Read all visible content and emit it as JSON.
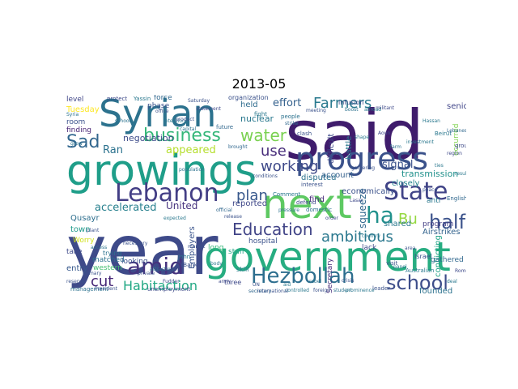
{
  "title": "2013-05",
  "words": [
    {
      "text": "said",
      "color": "#3f1c6c"
    },
    {
      "text": "year",
      "color": "#3e4a89"
    },
    {
      "text": "government",
      "color": "#27ad81"
    },
    {
      "text": "growings",
      "color": "#1f9e89"
    },
    {
      "text": "Syrian",
      "color": "#2c728e"
    },
    {
      "text": "next",
      "color": "#5ec962"
    },
    {
      "text": "progress",
      "color": "#3b528b"
    },
    {
      "text": "Lebanon",
      "color": "#433e85"
    },
    {
      "text": "State",
      "color": "#404387"
    },
    {
      "text": "amid",
      "color": "#46337e"
    },
    {
      "text": "Hezbollah",
      "color": "#2d6e8e"
    },
    {
      "text": "school",
      "color": "#3d4d8a"
    },
    {
      "text": "Education",
      "color": "#414487"
    },
    {
      "text": "business",
      "color": "#35b779"
    },
    {
      "text": "water",
      "color": "#7ad151"
    },
    {
      "text": "Habitaction",
      "color": "#22a884"
    },
    {
      "text": "ha",
      "color": "#21918c"
    },
    {
      "text": "Bu",
      "color": "#95d840"
    },
    {
      "text": "half",
      "color": "#3b528b"
    },
    {
      "text": "working",
      "color": "#3e4989"
    },
    {
      "text": "ambitious",
      "color": "#2a788e"
    },
    {
      "text": "Sad",
      "color": "#31668e"
    },
    {
      "text": "cut",
      "color": "#482878"
    },
    {
      "text": "plan",
      "color": "#38588c"
    },
    {
      "text": "Farmers",
      "color": "#29798e"
    },
    {
      "text": "use",
      "color": "#472c7a"
    },
    {
      "text": "effort",
      "color": "#34618d"
    },
    {
      "text": "United",
      "color": "#46327e"
    },
    {
      "text": "accelerated",
      "color": "#27808e"
    },
    {
      "text": "appeared",
      "color": "#b5de2b"
    },
    {
      "text": "Ran",
      "color": "#2c728e"
    },
    {
      "text": "negotiation",
      "color": "#3e4c8a"
    },
    {
      "text": "nuclear",
      "color": "#2a788e"
    },
    {
      "text": "signal",
      "color": "#3b528b"
    },
    {
      "text": "squeeze",
      "color": "#31688e"
    },
    {
      "text": "transmission",
      "color": "#21918c"
    },
    {
      "text": "Airstrikes",
      "color": "#33638d"
    },
    {
      "text": "conflicting",
      "color": "#20a386"
    },
    {
      "text": "Employers",
      "color": "#3a548c"
    },
    {
      "text": "Tuesday",
      "color": "#fde725"
    },
    {
      "text": "level",
      "color": "#404688"
    },
    {
      "text": "room",
      "color": "#3b528b"
    },
    {
      "text": "finding",
      "color": "#482475"
    },
    {
      "text": "Qusayr",
      "color": "#2e6f8e"
    },
    {
      "text": "town",
      "color": "#1f9a8a"
    },
    {
      "text": "Worry",
      "color": "#d0e11c"
    },
    {
      "text": "entry",
      "color": "#37598c"
    },
    {
      "text": "matched",
      "color": "#2c728e"
    },
    {
      "text": "western",
      "color": "#44bf70"
    },
    {
      "text": "economically",
      "color": "#3b528b"
    },
    {
      "text": "closely",
      "color": "#25848e"
    },
    {
      "text": "shared",
      "color": "#2a788e"
    },
    {
      "text": "program",
      "color": "#433e85"
    },
    {
      "text": "lack",
      "color": "#3e4a89"
    },
    {
      "text": "reported",
      "color": "#3f4788"
    },
    {
      "text": "staff",
      "color": "#21a685"
    },
    {
      "text": "hospital",
      "color": "#3b528b"
    },
    {
      "text": "disputed",
      "color": "#2c728e"
    },
    {
      "text": "account",
      "color": "#34618d"
    },
    {
      "text": "find",
      "color": "#472a7a"
    },
    {
      "text": "force",
      "color": "#31688e"
    },
    {
      "text": "phase",
      "color": "#3b528b"
    },
    {
      "text": "held",
      "color": "#2f6c8e"
    },
    {
      "text": "senior",
      "color": "#404588"
    },
    {
      "text": "occurred",
      "color": "#7fd34e"
    },
    {
      "text": "difficult",
      "color": "#3e4989"
    },
    {
      "text": "battle",
      "color": "#2a788e"
    },
    {
      "text": "long",
      "color": "#35b779"
    },
    {
      "text": "looking",
      "color": "#3b528b"
    },
    {
      "text": "trying",
      "color": "#2c728e"
    },
    {
      "text": "take",
      "color": "#3e4a89"
    },
    {
      "text": "anti",
      "color": "#2a788e"
    },
    {
      "text": "gathered",
      "color": "#31688e"
    },
    {
      "text": "Israel",
      "color": "#3b528b"
    },
    {
      "text": "Secretary",
      "color": "#472d7b"
    },
    {
      "text": "founded",
      "color": "#2c728e"
    },
    {
      "text": "three",
      "color": "#3e4989"
    },
    {
      "text": "skill",
      "color": "#2a788e"
    },
    {
      "text": "organization",
      "color": "#3b528b"
    },
    {
      "text": "infusion",
      "color": "#3e4a89"
    },
    {
      "text": "people",
      "color": "#2c728e"
    },
    {
      "text": "fight",
      "color": "#2a788e"
    },
    {
      "text": "clash",
      "color": "#3b528b"
    },
    {
      "text": "future",
      "color": "#31688e"
    },
    {
      "text": "Comment",
      "color": "#2a788e"
    },
    {
      "text": "interest",
      "color": "#3b528b"
    },
    {
      "text": "domestic",
      "color": "#2c728e"
    },
    {
      "text": "defend",
      "color": "#3e4989"
    },
    {
      "text": "Australian",
      "color": "#2a788e"
    },
    {
      "text": "visit",
      "color": "#3b528b"
    },
    {
      "text": "English",
      "color": "#31688e"
    },
    {
      "text": "group",
      "color": "#3e4a89"
    },
    {
      "text": "Beirut",
      "color": "#2a788e"
    },
    {
      "text": "leader",
      "color": "#3b528b"
    },
    {
      "text": "management",
      "color": "#2c728e"
    },
    {
      "text": "unemployment",
      "color": "#3e4989"
    },
    {
      "text": "President",
      "color": "#3b528b"
    },
    {
      "text": "controlled",
      "color": "#2a788e"
    },
    {
      "text": "secretary",
      "color": "#31688e"
    },
    {
      "text": "international",
      "color": "#3b528b"
    },
    {
      "text": "student",
      "color": "#2c728e"
    },
    {
      "text": "prominence",
      "color": "#2a788e"
    },
    {
      "text": "foreign",
      "color": "#3b528b"
    },
    {
      "text": "protect",
      "color": "#3e4a89"
    },
    {
      "text": "Yassin",
      "color": "#2a788e"
    },
    {
      "text": "office",
      "color": "#3b528b"
    },
    {
      "text": "militant",
      "color": "#3e4989"
    },
    {
      "text": "boost",
      "color": "#2c728e"
    },
    {
      "text": "abroad",
      "color": "#2a788e"
    },
    {
      "text": "meeting",
      "color": "#3b528b"
    },
    {
      "text": "brought",
      "color": "#31688e"
    },
    {
      "text": "shape",
      "color": "#2a788e"
    },
    {
      "text": "gathering",
      "color": "#3b528b"
    },
    {
      "text": "attracting",
      "color": "#2c728e"
    },
    {
      "text": "Fudder",
      "color": "#3e4989"
    },
    {
      "text": "primary",
      "color": "#3b528b"
    },
    {
      "text": "body",
      "color": "#2a788e"
    },
    {
      "text": "strike",
      "color": "#31688e"
    },
    {
      "text": "private",
      "color": "#3b528b"
    },
    {
      "text": "John",
      "color": "#2a788e"
    },
    {
      "text": "YBank",
      "color": "#3b528b"
    },
    {
      "text": "Syria",
      "color": "#2c728e"
    },
    {
      "text": "Lasar",
      "color": "#3e4989"
    },
    {
      "text": "panel",
      "color": "#2a788e"
    },
    {
      "text": "area",
      "color": "#3b528b"
    },
    {
      "text": "school",
      "color": "#2c728e"
    },
    {
      "text": "necessary",
      "color": "#3b528b"
    },
    {
      "text": "intention",
      "color": "#2a788e"
    },
    {
      "text": "Saturday",
      "color": "#3b528b"
    },
    {
      "text": "population",
      "color": "#2c728e"
    },
    {
      "text": "statement",
      "color": "#3e4989"
    },
    {
      "text": "investment",
      "color": "#2a788e"
    },
    {
      "text": "conditions",
      "color": "#3b528b"
    },
    {
      "text": "Lebanese",
      "color": "#31688e"
    },
    {
      "text": "Hassan",
      "color": "#2a788e"
    },
    {
      "text": "plant",
      "color": "#3b528b"
    },
    {
      "text": "access",
      "color": "#2c728e"
    },
    {
      "text": "region",
      "color": "#3e4989"
    },
    {
      "text": "result",
      "color": "#2a788e"
    },
    {
      "text": "reserve",
      "color": "#3b528b"
    },
    {
      "text": "grow",
      "color": "#2c728e"
    },
    {
      "text": "market",
      "color": "#3b528b"
    },
    {
      "text": "expected",
      "color": "#2a788e"
    },
    {
      "text": "official",
      "color": "#31688e"
    },
    {
      "text": "release",
      "color": "#3b528b"
    },
    {
      "text": "pressure",
      "color": "#2c728e"
    },
    {
      "text": "order",
      "color": "#3e4989"
    },
    {
      "text": "country",
      "color": "#2a788e"
    },
    {
      "text": "product",
      "color": "#3b528b"
    },
    {
      "text": "capital",
      "color": "#2c728e"
    },
    {
      "text": "Aoun",
      "color": "#3e4989"
    },
    {
      "text": "ties",
      "color": "#2a788e"
    },
    {
      "text": "peace",
      "color": "#3b528b"
    },
    {
      "text": "farm",
      "color": "#2c728e"
    },
    {
      "text": "Rome",
      "color": "#3e4989"
    },
    {
      "text": "deal",
      "color": "#2a788e"
    },
    {
      "text": "crisis",
      "color": "#3b528b"
    },
    {
      "text": "rebel",
      "color": "#2c728e"
    },
    {
      "text": "army",
      "color": "#3e4989"
    },
    {
      "text": "aid",
      "color": "#2a788e"
    },
    {
      "text": "UN",
      "color": "#3b528b"
    }
  ]
}
